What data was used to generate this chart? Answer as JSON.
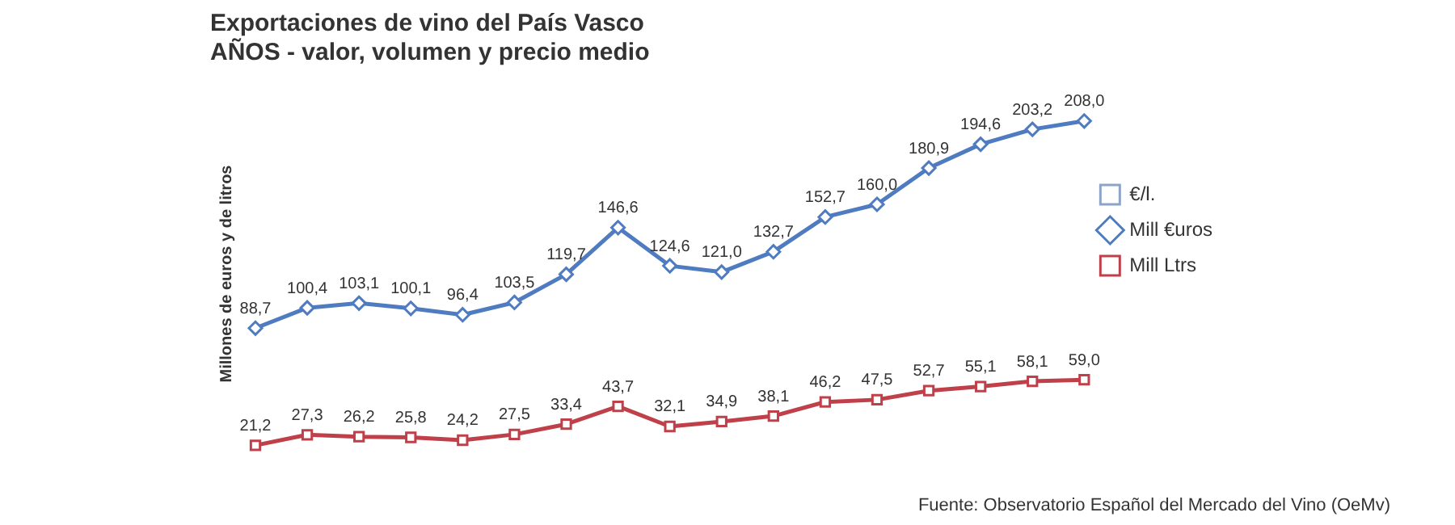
{
  "chart_data": {
    "type": "line",
    "title": "Exportaciones de vino del País Vasco",
    "subtitle": "AÑOS - valor, volumen y precio medio",
    "ylabel": "Millones de euros y de litros",
    "categories": [
      null,
      null,
      null,
      null,
      null,
      null,
      null,
      null,
      null,
      null,
      null,
      null,
      null,
      null,
      null,
      null,
      null
    ],
    "series": [
      {
        "name": "€/l.",
        "color": "#8ea3c8",
        "marker": "square",
        "values": [
          null,
          null,
          null,
          null,
          null,
          null,
          null,
          null,
          null,
          null,
          null,
          null,
          null,
          null,
          null,
          null,
          null
        ]
      },
      {
        "name": "Mill €uros",
        "color": "#4f7cc0",
        "marker": "diamond",
        "values": [
          88.7,
          100.4,
          103.1,
          100.1,
          96.4,
          103.5,
          119.7,
          146.6,
          124.6,
          121.0,
          132.7,
          152.7,
          160.0,
          180.9,
          194.6,
          203.2,
          208.0
        ],
        "value_labels": [
          "88,7",
          "100,4",
          "103,1",
          "100,1",
          "96,4",
          "103,5",
          "119,7",
          "146,6",
          "124,6",
          "121,0",
          "132,7",
          "152,7",
          "160,0",
          "180,9",
          "194,6",
          "203,2",
          "208,0"
        ]
      },
      {
        "name": "Mill Ltrs",
        "color": "#c0404a",
        "marker": "square",
        "values": [
          21.2,
          27.3,
          26.2,
          25.8,
          24.2,
          27.5,
          33.4,
          43.7,
          32.1,
          34.9,
          38.1,
          46.2,
          47.5,
          52.7,
          55.1,
          58.1,
          59.0
        ],
        "value_labels": [
          "21,2",
          "27,3",
          "26,2",
          "25,8",
          "24,2",
          "27,5",
          "33,4",
          "43,7",
          "32,1",
          "34,9",
          "38,1",
          "46,2",
          "47,5",
          "52,7",
          "55,1",
          "58,1",
          "59,0"
        ]
      }
    ],
    "grid": false,
    "legend": "right",
    "line_style": "solid",
    "annotations": [
      "Fuente: Observatorio Español del Mercado del Vino (OeMv)"
    ]
  }
}
